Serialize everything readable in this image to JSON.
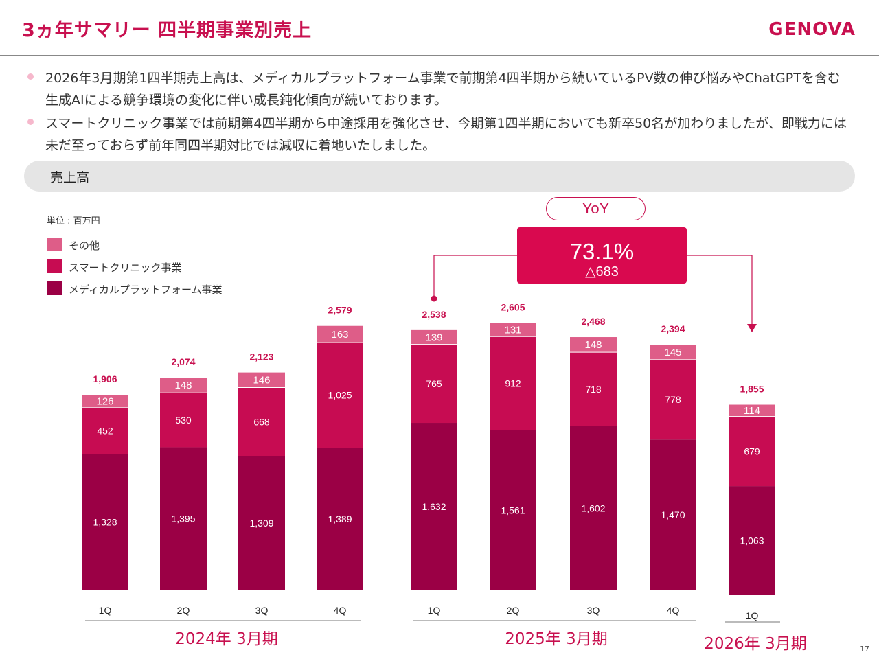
{
  "page": {
    "title": "3ヵ年サマリー 四半期事業別売上",
    "logo": "GENOVA",
    "page_number": "17",
    "bullets": [
      "2026年3月期第1四半期売上高は、メディカルプラットフォーム事業で前期第4四半期から続いているPV数の伸び悩みやChatGPTを含む生成AIによる競争環境の変化に伴い成長鈍化傾向が続いております。",
      "スマートクリニック事業では前期第4四半期から中途採用を強化させ、今期第1四半期においても新卒50名が加わりましたが、即戦力には未だ至っておらず前年同四半期対比では減収に着地いたしました。"
    ],
    "section_label": "売上高"
  },
  "yoy": {
    "label": "YoY",
    "percent": "73.1%",
    "diff": "△683"
  },
  "colors": {
    "brand": "#c8104f",
    "medical": "#9b0045",
    "smart": "#c70c52",
    "other": "#de5d88"
  },
  "chart_data": {
    "type": "bar",
    "stacked": true,
    "unit_label": "単位 : 百万円",
    "categories": [
      "1Q",
      "2Q",
      "3Q",
      "4Q",
      "1Q",
      "2Q",
      "3Q",
      "4Q",
      "1Q"
    ],
    "groups": [
      {
        "label": "2024年 3月期",
        "start": 0,
        "end": 3
      },
      {
        "label": "2025年 3月期",
        "start": 4,
        "end": 7
      },
      {
        "label": "2026年 3月期",
        "start": 8,
        "end": 8
      }
    ],
    "series": [
      {
        "name": "メディカルプラットフォーム事業",
        "color": "#9b0045",
        "values": [
          1328,
          1395,
          1309,
          1389,
          1632,
          1561,
          1602,
          1470,
          1063
        ]
      },
      {
        "name": "スマートクリニック事業",
        "color": "#c70c52",
        "values": [
          452,
          530,
          668,
          1025,
          765,
          912,
          718,
          778,
          679
        ]
      },
      {
        "name": "その他",
        "color": "#de5d88",
        "values": [
          126,
          148,
          146,
          163,
          139,
          131,
          148,
          145,
          114
        ]
      }
    ],
    "totals": [
      1906,
      2074,
      2123,
      2579,
      2538,
      2605,
      2468,
      2394,
      1855
    ],
    "legend_order": [
      "その他",
      "スマートクリニック事業",
      "メディカルプラットフォーム事業"
    ],
    "ylim": [
      0,
      2579
    ]
  }
}
